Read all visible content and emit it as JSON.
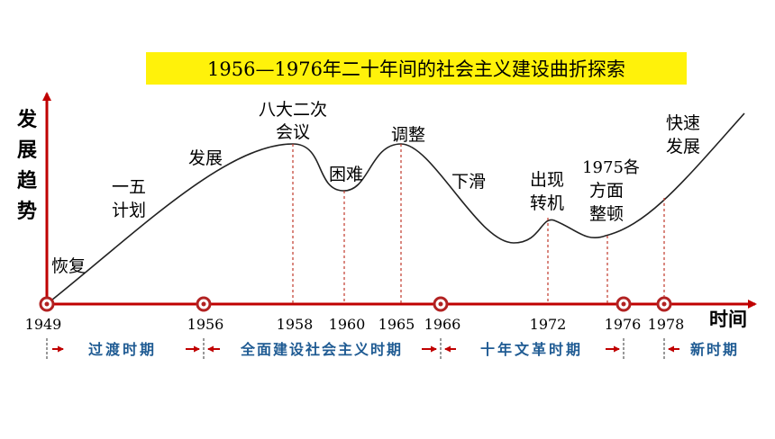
{
  "title": "1956—1976年二十年间的社会主义建设曲折探索",
  "y_axis_label": [
    "发",
    "展",
    "趋",
    "势"
  ],
  "x_axis_label": "时间",
  "years": [
    "1949",
    "1956",
    "1958",
    "1960",
    "1965",
    "1966",
    "1972",
    "1976",
    "1978"
  ],
  "annotations": [
    {
      "lines": [
        "恢复"
      ]
    },
    {
      "lines": [
        "一五",
        "计划"
      ]
    },
    {
      "lines": [
        "发展"
      ]
    },
    {
      "lines": [
        "八大二次",
        "会议"
      ]
    },
    {
      "lines": [
        "困难"
      ]
    },
    {
      "lines": [
        "调整"
      ]
    },
    {
      "lines": [
        "下滑"
      ]
    },
    {
      "lines": [
        "出现",
        "转机"
      ]
    },
    {
      "lines": [
        "1975各",
        "方面",
        "整顿"
      ]
    },
    {
      "lines": [
        "快速",
        "发展"
      ]
    }
  ],
  "periods": [
    "过渡时期",
    "全面建设社会主义时期",
    "十年文革时期",
    "新时期"
  ],
  "colors": {
    "axis": "#c00000",
    "curve": "#222222",
    "dash": "#c0392b",
    "highlight": "#fff20a",
    "period_text": "#1f5b93",
    "arrow": "#c00000"
  }
}
